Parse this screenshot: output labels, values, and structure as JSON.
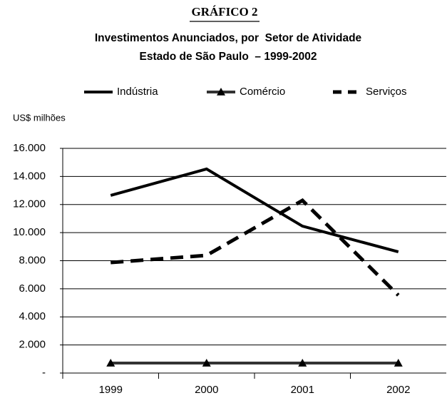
{
  "chart_data": {
    "type": "line",
    "title": "GRÁFICO 2",
    "subtitle": [
      "Investimentos Anunciados, por  Setor de Atividade",
      "Estado de São Paulo  – 1999-2002"
    ],
    "y_label": "US$ milhões",
    "categories": [
      "1999",
      "2000",
      "2001",
      "2002"
    ],
    "series": [
      {
        "name": "Indústria",
        "color": "#000000",
        "values": [
          12650,
          14530,
          10460,
          8630
        ]
      },
      {
        "name": "Comércio",
        "color": "#333333",
        "marker": "triangle",
        "values": [
          710,
          710,
          710,
          710
        ]
      },
      {
        "name": "Serviços",
        "color": "#000000",
        "dash": true,
        "values": [
          7870,
          8380,
          12290,
          5540
        ]
      }
    ],
    "ylim": [
      0,
      16000
    ],
    "yticks": [
      {
        "value": 0,
        "label": "-"
      },
      {
        "value": 2000,
        "label": "2.000"
      },
      {
        "value": 4000,
        "label": "4.000"
      },
      {
        "value": 6000,
        "label": "6.000"
      },
      {
        "value": 8000,
        "label": "8.000"
      },
      {
        "value": 10000,
        "label": "10.000"
      },
      {
        "value": 12000,
        "label": "12.000"
      },
      {
        "value": 14000,
        "label": "14.000"
      },
      {
        "value": 16000,
        "label": "16.000"
      }
    ],
    "grid": true,
    "legend": "top"
  }
}
